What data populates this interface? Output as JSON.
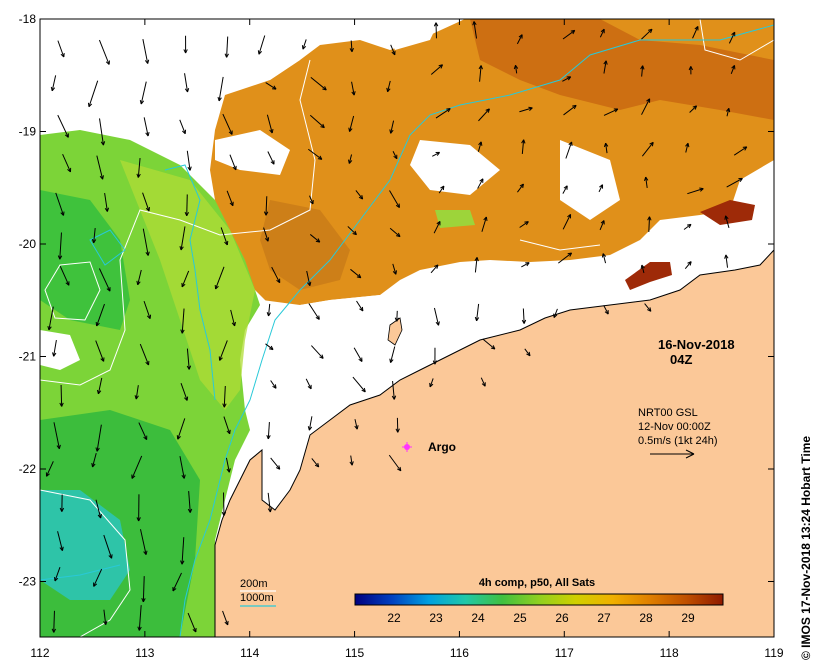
{
  "map": {
    "date": "16-Nov-2018",
    "time": "04Z",
    "x_ticks": [
      "112",
      "113",
      "114",
      "115",
      "116",
      "117",
      "118",
      "119"
    ],
    "y_ticks": [
      "-18",
      "-19",
      "-20",
      "-21",
      "-22",
      "-23"
    ]
  },
  "current_info": {
    "line1": "NRT00 GSL",
    "line2": "12-Nov 00:00Z",
    "line3": "0.5m/s (1kt 24h)"
  },
  "argo_label": "Argo",
  "contour_legend": {
    "depth1": "200m",
    "depth2": "1000m",
    "color1": "#ffffff",
    "color2": "#29c9d8"
  },
  "colorbar": {
    "title": "4h comp, p50, All Sats",
    "ticks": [
      "22",
      "23",
      "24",
      "25",
      "26",
      "27",
      "28",
      "29"
    ],
    "colors": [
      "#00007f",
      "#0040c0",
      "#00a0e0",
      "#20c8a8",
      "#40c040",
      "#90d020",
      "#d0d000",
      "#f0b000",
      "#e08000",
      "#c05000",
      "#8f1a00"
    ]
  },
  "credit": "© IMOS 17-Nov-2018 13:24 Hobart Time",
  "colors": {
    "land": "#fbc898",
    "warm": "#e08a10",
    "cool": "#5ccc3a",
    "current": "#29c9d8",
    "argo": "#ff33ff"
  }
}
